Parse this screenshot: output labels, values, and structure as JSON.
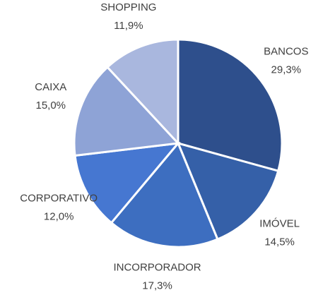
{
  "chart_data": {
    "type": "pie",
    "categories": [
      "BANCOS",
      "IMÓVEL",
      "INCORPORADOR",
      "CORPORATIVO",
      "CAIXA",
      "SHOPPING"
    ],
    "values": [
      29.3,
      14.5,
      17.3,
      12.0,
      15.0,
      11.9
    ],
    "value_labels": [
      "29,3%",
      "14,5%",
      "17,3%",
      "12,0%",
      "15,0%",
      "11,9%"
    ],
    "colors": [
      "#2e4f8c",
      "#3560a8",
      "#3d6ec0",
      "#4677d1",
      "#8ea3d6",
      "#a9b7de"
    ]
  }
}
